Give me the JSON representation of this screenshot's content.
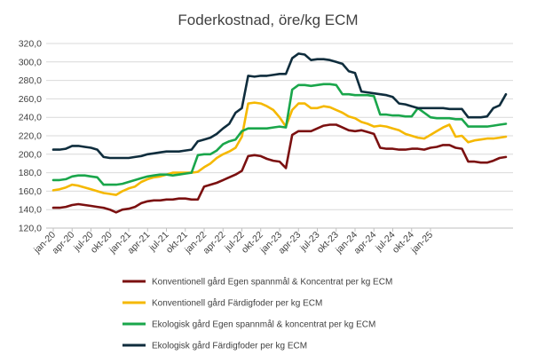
{
  "chart_data": {
    "type": "line",
    "title": "Foderkostnad, öre/kg ECM",
    "xlabel": "",
    "ylabel": "",
    "ylim": [
      120,
      320
    ],
    "yticks": [
      "120,0",
      "140,0",
      "160,0",
      "180,0",
      "200,0",
      "220,0",
      "240,0",
      "260,0",
      "280,0",
      "300,0",
      "320,0"
    ],
    "grid": true,
    "legend_position": "bottom",
    "x_start": "jan-20",
    "x_end": "feb-25",
    "xtick_labels": [
      "jan-20",
      "apr-20",
      "jul-20",
      "okt-20",
      "jan-21",
      "apr-21",
      "jul-21",
      "okt-21",
      "jan-22",
      "apr-22",
      "jul-22",
      "okt-22",
      "jan-23",
      "apr-23",
      "jul-23",
      "okt-23",
      "jan-24",
      "apr-24",
      "jul-24",
      "okt-24",
      "jan-25"
    ],
    "series": [
      {
        "name": "Konventionell gård Egen spannmål & Koncentrat per kg ECM",
        "color": "#7b1010",
        "values": [
          142,
          142,
          143,
          145,
          146,
          145,
          144,
          143,
          142,
          140,
          137,
          140,
          141,
          143,
          147,
          149,
          150,
          150,
          151,
          151,
          152,
          152,
          151,
          151,
          165,
          167,
          169,
          172,
          175,
          178,
          182,
          198,
          199,
          198,
          195,
          193,
          192,
          185,
          221,
          225,
          225,
          225,
          228,
          231,
          232,
          232,
          229,
          226,
          225,
          226,
          224,
          222,
          207,
          206,
          206,
          205,
          205,
          206,
          206,
          205,
          207,
          208,
          210,
          210,
          207,
          206,
          192,
          192,
          191,
          191,
          193,
          196,
          197
        ]
      },
      {
        "name": "Konventionell gård Färdigfoder per kg ECM",
        "color": "#f5b800",
        "values": [
          161,
          162,
          164,
          167,
          166,
          164,
          162,
          160,
          158,
          157,
          156,
          160,
          163,
          165,
          170,
          173,
          175,
          176,
          178,
          180,
          180,
          180,
          180,
          181,
          186,
          190,
          196,
          200,
          203,
          207,
          219,
          255,
          256,
          255,
          252,
          248,
          240,
          230,
          248,
          255,
          255,
          250,
          250,
          252,
          251,
          248,
          245,
          241,
          239,
          235,
          233,
          230,
          231,
          230,
          228,
          226,
          222,
          220,
          218,
          217,
          221,
          225,
          229,
          232,
          219,
          220,
          213,
          215,
          216,
          217,
          217,
          218,
          219
        ]
      },
      {
        "name": "Ekologisk gård Egen spannmål & koncentrat per kg ECM",
        "color": "#1aa64b",
        "values": [
          172,
          172,
          173,
          176,
          177,
          177,
          176,
          175,
          167,
          167,
          167,
          168,
          170,
          172,
          174,
          176,
          177,
          178,
          178,
          177,
          178,
          179,
          180,
          199,
          200,
          200,
          204,
          211,
          214,
          216,
          225,
          228,
          228,
          228,
          228,
          229,
          230,
          229,
          270,
          275,
          275,
          274,
          275,
          276,
          276,
          275,
          265,
          265,
          264,
          264,
          264,
          263,
          243,
          243,
          242,
          242,
          241,
          241,
          250,
          245,
          240,
          239,
          239,
          239,
          238,
          238,
          230,
          230,
          230,
          230,
          231,
          232,
          233
        ]
      },
      {
        "name": "Ekologisk gård Färdigfoder per kg ECM",
        "color": "#0f2d3d",
        "values": [
          205,
          205,
          206,
          209,
          209,
          208,
          207,
          205,
          197,
          196,
          196,
          196,
          196,
          197,
          198,
          200,
          201,
          202,
          203,
          203,
          203,
          204,
          205,
          214,
          216,
          218,
          222,
          228,
          233,
          245,
          250,
          285,
          284,
          285,
          285,
          286,
          287,
          287,
          304,
          309,
          308,
          302,
          303,
          303,
          302,
          300,
          298,
          290,
          288,
          268,
          267,
          266,
          265,
          264,
          262,
          255,
          254,
          252,
          250,
          250,
          250,
          250,
          250,
          249,
          249,
          249,
          240,
          240,
          240,
          241,
          250,
          253,
          265
        ]
      }
    ]
  }
}
